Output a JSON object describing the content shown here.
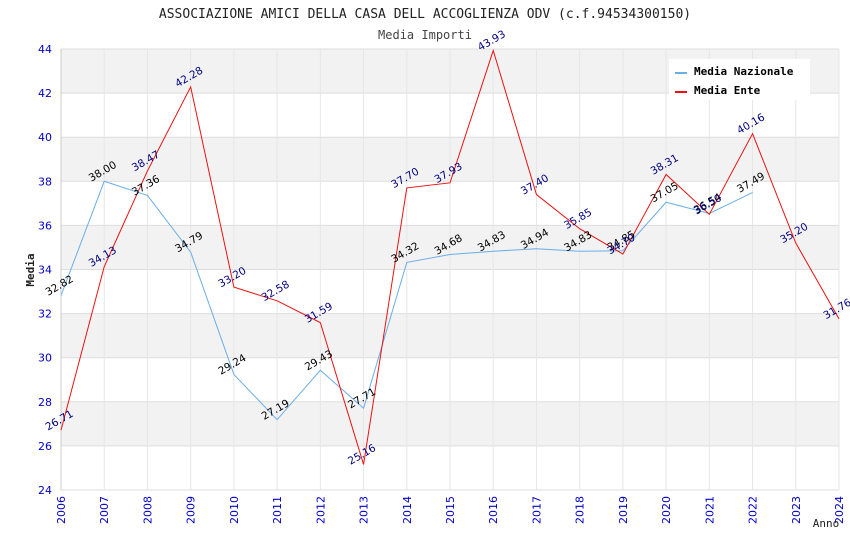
{
  "chart_data": {
    "type": "line",
    "title": "ASSOCIAZIONE AMICI DELLA CASA DELL ACCOGLIENZA ODV (c.f.94534300150)",
    "subtitle": "Media Importi",
    "xlabel": "Anno",
    "ylabel": "Media",
    "ylim": [
      24,
      44
    ],
    "yticks": [
      24,
      26,
      28,
      30,
      32,
      34,
      36,
      38,
      40,
      42,
      44
    ],
    "x": [
      "2006",
      "2007",
      "2008",
      "2009",
      "2010",
      "2011",
      "2012",
      "2013",
      "2014",
      "2015",
      "2016",
      "2017",
      "2018",
      "2019",
      "2020",
      "2021",
      "2022",
      "2023",
      "2024"
    ],
    "legend_position": "top-right",
    "grid": true,
    "series": [
      {
        "name": "Media Nazionale",
        "color": "#6aaee8",
        "label_color": "#000000",
        "values": [
          32.82,
          38.0,
          37.36,
          34.79,
          29.24,
          27.19,
          29.43,
          27.71,
          34.32,
          34.68,
          34.83,
          34.94,
          34.83,
          34.85,
          37.05,
          36.54,
          37.49,
          null,
          null
        ],
        "labels": [
          "32.82",
          "38.00",
          "37.36",
          "34.79",
          "29.24",
          "27.19",
          "29.43",
          "27.71",
          "34.32",
          "34.68",
          "34.83",
          "34.94",
          "34.83",
          "34.85",
          "37.05",
          "36.54",
          "37.49",
          "",
          ""
        ]
      },
      {
        "name": "Media Ente",
        "color": "#ee1111",
        "label_color": "#000080",
        "values": [
          26.71,
          34.13,
          38.47,
          42.28,
          33.2,
          32.58,
          31.59,
          25.16,
          37.7,
          37.93,
          43.93,
          37.4,
          35.85,
          34.7,
          38.31,
          36.5,
          40.16,
          35.2,
          31.76
        ],
        "labels": [
          "26.71",
          "34.13",
          "38.47",
          "42.28",
          "33.20",
          "32.58",
          "31.59",
          "25.16",
          "37.70",
          "37.93",
          "43.93",
          "37.40",
          "35.85",
          "34.70",
          "38.31",
          "36.50",
          "40.16",
          "35.20",
          "31.76"
        ]
      }
    ]
  }
}
